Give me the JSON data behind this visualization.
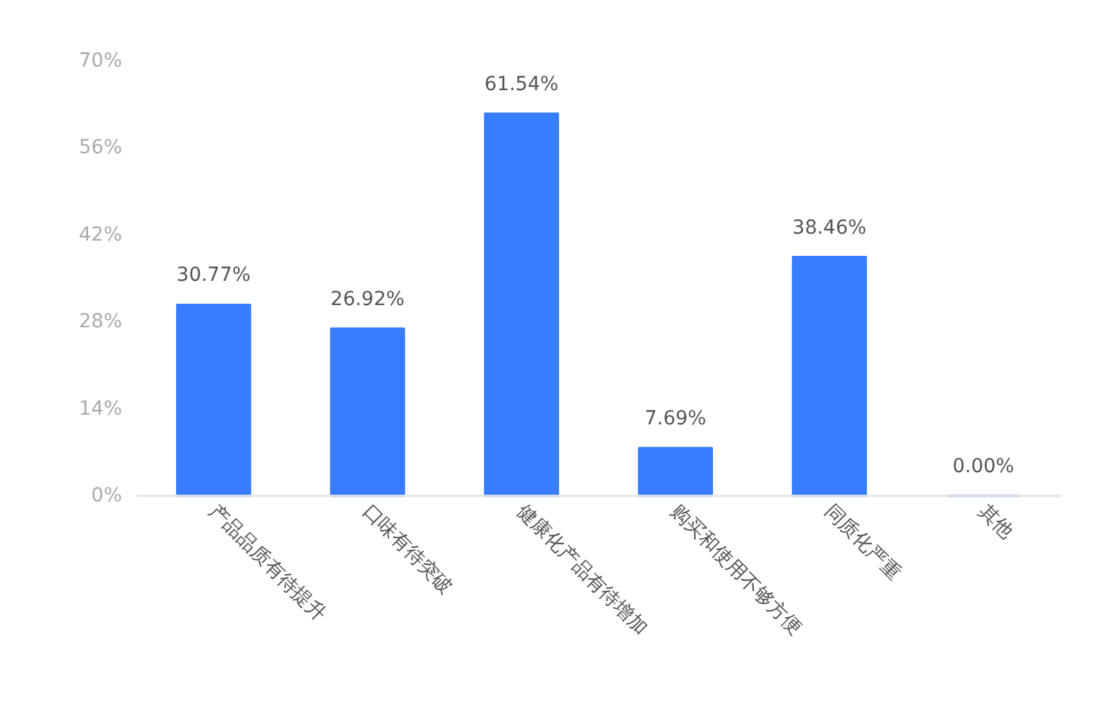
{
  "chart_data": {
    "type": "bar",
    "categories": [
      "产品品质有待提升",
      "口味有待突破",
      "健康化产品有待增加",
      "购买和使用不够方便",
      "同质化严重",
      "其他"
    ],
    "values": [
      30.77,
      26.92,
      61.54,
      7.69,
      38.46,
      0
    ],
    "color": "#387cff",
    "value_labels": [
      "30.77%",
      "26.92%",
      "61.54%",
      "7.69%",
      "38.46%",
      "0.00%"
    ],
    "ylim": [
      0,
      70
    ],
    "yticks": [
      {
        "value": 0,
        "label": "0%"
      },
      {
        "value": 14,
        "label": "14%"
      },
      {
        "value": 28,
        "label": "28%"
      },
      {
        "value": 42,
        "label": "42%"
      },
      {
        "value": 56,
        "label": "56%"
      },
      {
        "value": 70,
        "label": "70%"
      }
    ]
  }
}
